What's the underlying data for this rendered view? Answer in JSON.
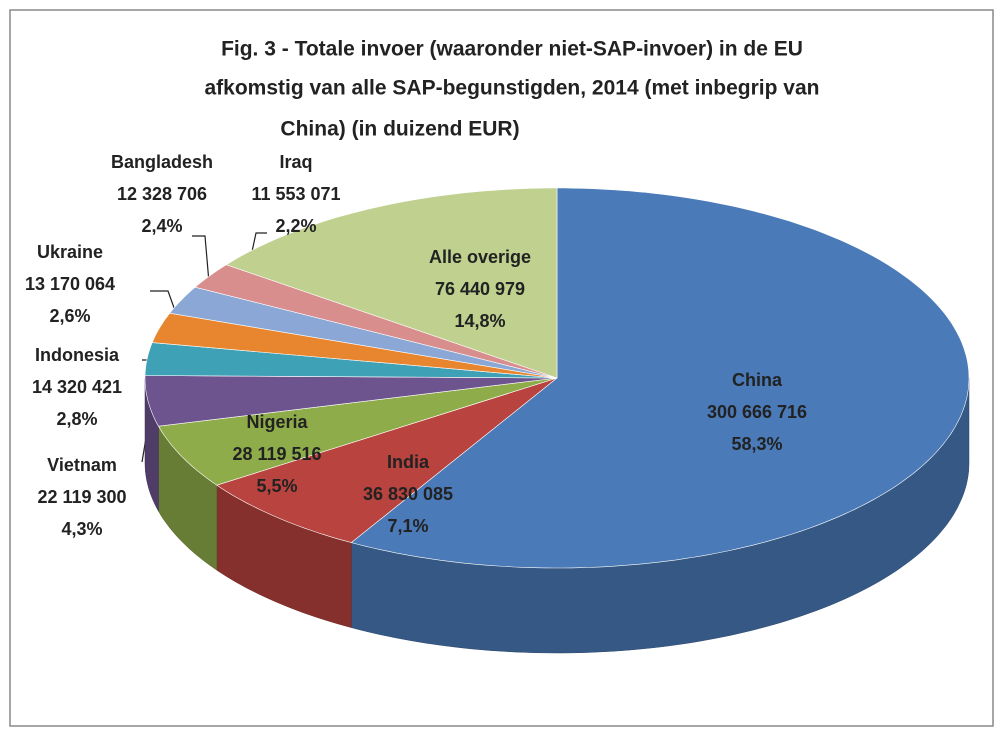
{
  "chart_data": {
    "type": "pie3d",
    "title": [
      "Fig. 3 - Totale invoer (waaronder niet-SAP-invoer) in de EU",
      "afkomstig van alle SAP-begunstigden, 2014 (met inbegrip van",
      "China) (in duizend EUR)"
    ],
    "categories": [
      "China",
      "India",
      "Nigeria",
      "Vietnam",
      "Indonesia",
      "Ukraine",
      "Bangladesh",
      "Iraq",
      "Alle overige"
    ],
    "values": [
      300666716,
      36830085,
      28119516,
      22119300,
      14320421,
      13170064,
      12328706,
      11553071,
      76440979
    ],
    "value_labels": [
      "300 666 716",
      "36 830 085",
      "28 119 516",
      "22 119 300",
      "14 320 421",
      "13 170 064",
      "12 328 706",
      "11 553 071",
      "76 440 979"
    ],
    "percentages": [
      58.3,
      7.1,
      5.5,
      4.3,
      2.8,
      2.6,
      2.4,
      2.2,
      14.8
    ],
    "percentage_labels": [
      "58,3%",
      "7,1%",
      "5,5%",
      "4,3%",
      "2,8%",
      "2,6%",
      "2,4%",
      "2,2%",
      "14,8%"
    ],
    "colors": [
      "#4a7ab8",
      "#b9433f",
      "#8fac4a",
      "#6e548f",
      "#3fa1b6",
      "#e8862f",
      "#8aa7d6",
      "#d88e8d",
      "#bfd08f"
    ]
  }
}
